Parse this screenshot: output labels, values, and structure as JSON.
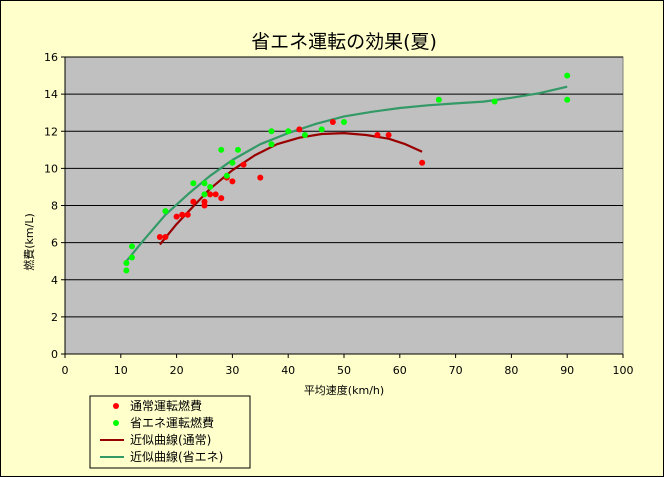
{
  "chart_data": {
    "type": "scatter",
    "title": "省エネ運転の効果(夏)",
    "xlabel": "平均速度(km/h)",
    "ylabel": "燃費(km/L)",
    "xlim": [
      0,
      100
    ],
    "ylim": [
      0,
      16
    ],
    "xticks": [
      0,
      10,
      20,
      30,
      40,
      50,
      60,
      70,
      80,
      90,
      100
    ],
    "yticks": [
      0,
      2,
      4,
      6,
      8,
      10,
      12,
      14,
      16
    ],
    "grid": "horizontal",
    "legend_position": "bottom-left",
    "series": [
      {
        "name": "通常運転燃費",
        "kind": "points",
        "color": "#ff0000",
        "points": [
          [
            17,
            6.3
          ],
          [
            18,
            6.3
          ],
          [
            20,
            7.4
          ],
          [
            21,
            7.5
          ],
          [
            22,
            7.5
          ],
          [
            23,
            8.2
          ],
          [
            25,
            8.0
          ],
          [
            25,
            8.2
          ],
          [
            26,
            8.6
          ],
          [
            27,
            8.6
          ],
          [
            28,
            8.4
          ],
          [
            29,
            9.5
          ],
          [
            30,
            9.3
          ],
          [
            32,
            10.2
          ],
          [
            35,
            9.5
          ],
          [
            42,
            12.1
          ],
          [
            48,
            12.5
          ],
          [
            56,
            11.8
          ],
          [
            58,
            11.8
          ],
          [
            64,
            10.3
          ]
        ]
      },
      {
        "name": "省エネ運転燃費",
        "kind": "points",
        "color": "#00ff00",
        "points": [
          [
            11,
            4.5
          ],
          [
            11,
            4.9
          ],
          [
            12,
            5.2
          ],
          [
            12,
            5.8
          ],
          [
            18,
            7.7
          ],
          [
            23,
            9.2
          ],
          [
            25,
            8.6
          ],
          [
            25,
            9.2
          ],
          [
            26,
            9.0
          ],
          [
            28,
            11.0
          ],
          [
            29,
            9.6
          ],
          [
            30,
            10.3
          ],
          [
            31,
            11.0
          ],
          [
            37,
            11.3
          ],
          [
            37,
            12.0
          ],
          [
            40,
            12.0
          ],
          [
            43,
            11.8
          ],
          [
            46,
            12.1
          ],
          [
            50,
            12.5
          ],
          [
            67,
            13.7
          ],
          [
            77,
            13.6
          ],
          [
            90,
            15.0
          ],
          [
            90,
            13.7
          ]
        ]
      },
      {
        "name": "近似曲線(通常)",
        "kind": "curve",
        "color": "#990000",
        "points": [
          [
            17,
            5.9
          ],
          [
            20,
            7.0
          ],
          [
            23,
            7.95
          ],
          [
            26,
            8.9
          ],
          [
            30,
            9.9
          ],
          [
            34,
            10.7
          ],
          [
            38,
            11.3
          ],
          [
            42,
            11.65
          ],
          [
            46,
            11.85
          ],
          [
            50,
            11.9
          ],
          [
            54,
            11.8
          ],
          [
            58,
            11.6
          ],
          [
            61,
            11.3
          ],
          [
            64,
            10.9
          ]
        ]
      },
      {
        "name": "近似曲線(省エネ)",
        "kind": "curve",
        "color": "#339966",
        "points": [
          [
            11,
            5.0
          ],
          [
            14,
            6.1
          ],
          [
            18,
            7.5
          ],
          [
            22,
            8.6
          ],
          [
            26,
            9.6
          ],
          [
            30,
            10.45
          ],
          [
            35,
            11.3
          ],
          [
            40,
            11.9
          ],
          [
            45,
            12.4
          ],
          [
            50,
            12.8
          ],
          [
            55,
            13.05
          ],
          [
            60,
            13.25
          ],
          [
            65,
            13.4
          ],
          [
            70,
            13.5
          ],
          [
            75,
            13.6
          ],
          [
            80,
            13.8
          ],
          [
            85,
            14.05
          ],
          [
            90,
            14.4
          ]
        ]
      }
    ]
  }
}
